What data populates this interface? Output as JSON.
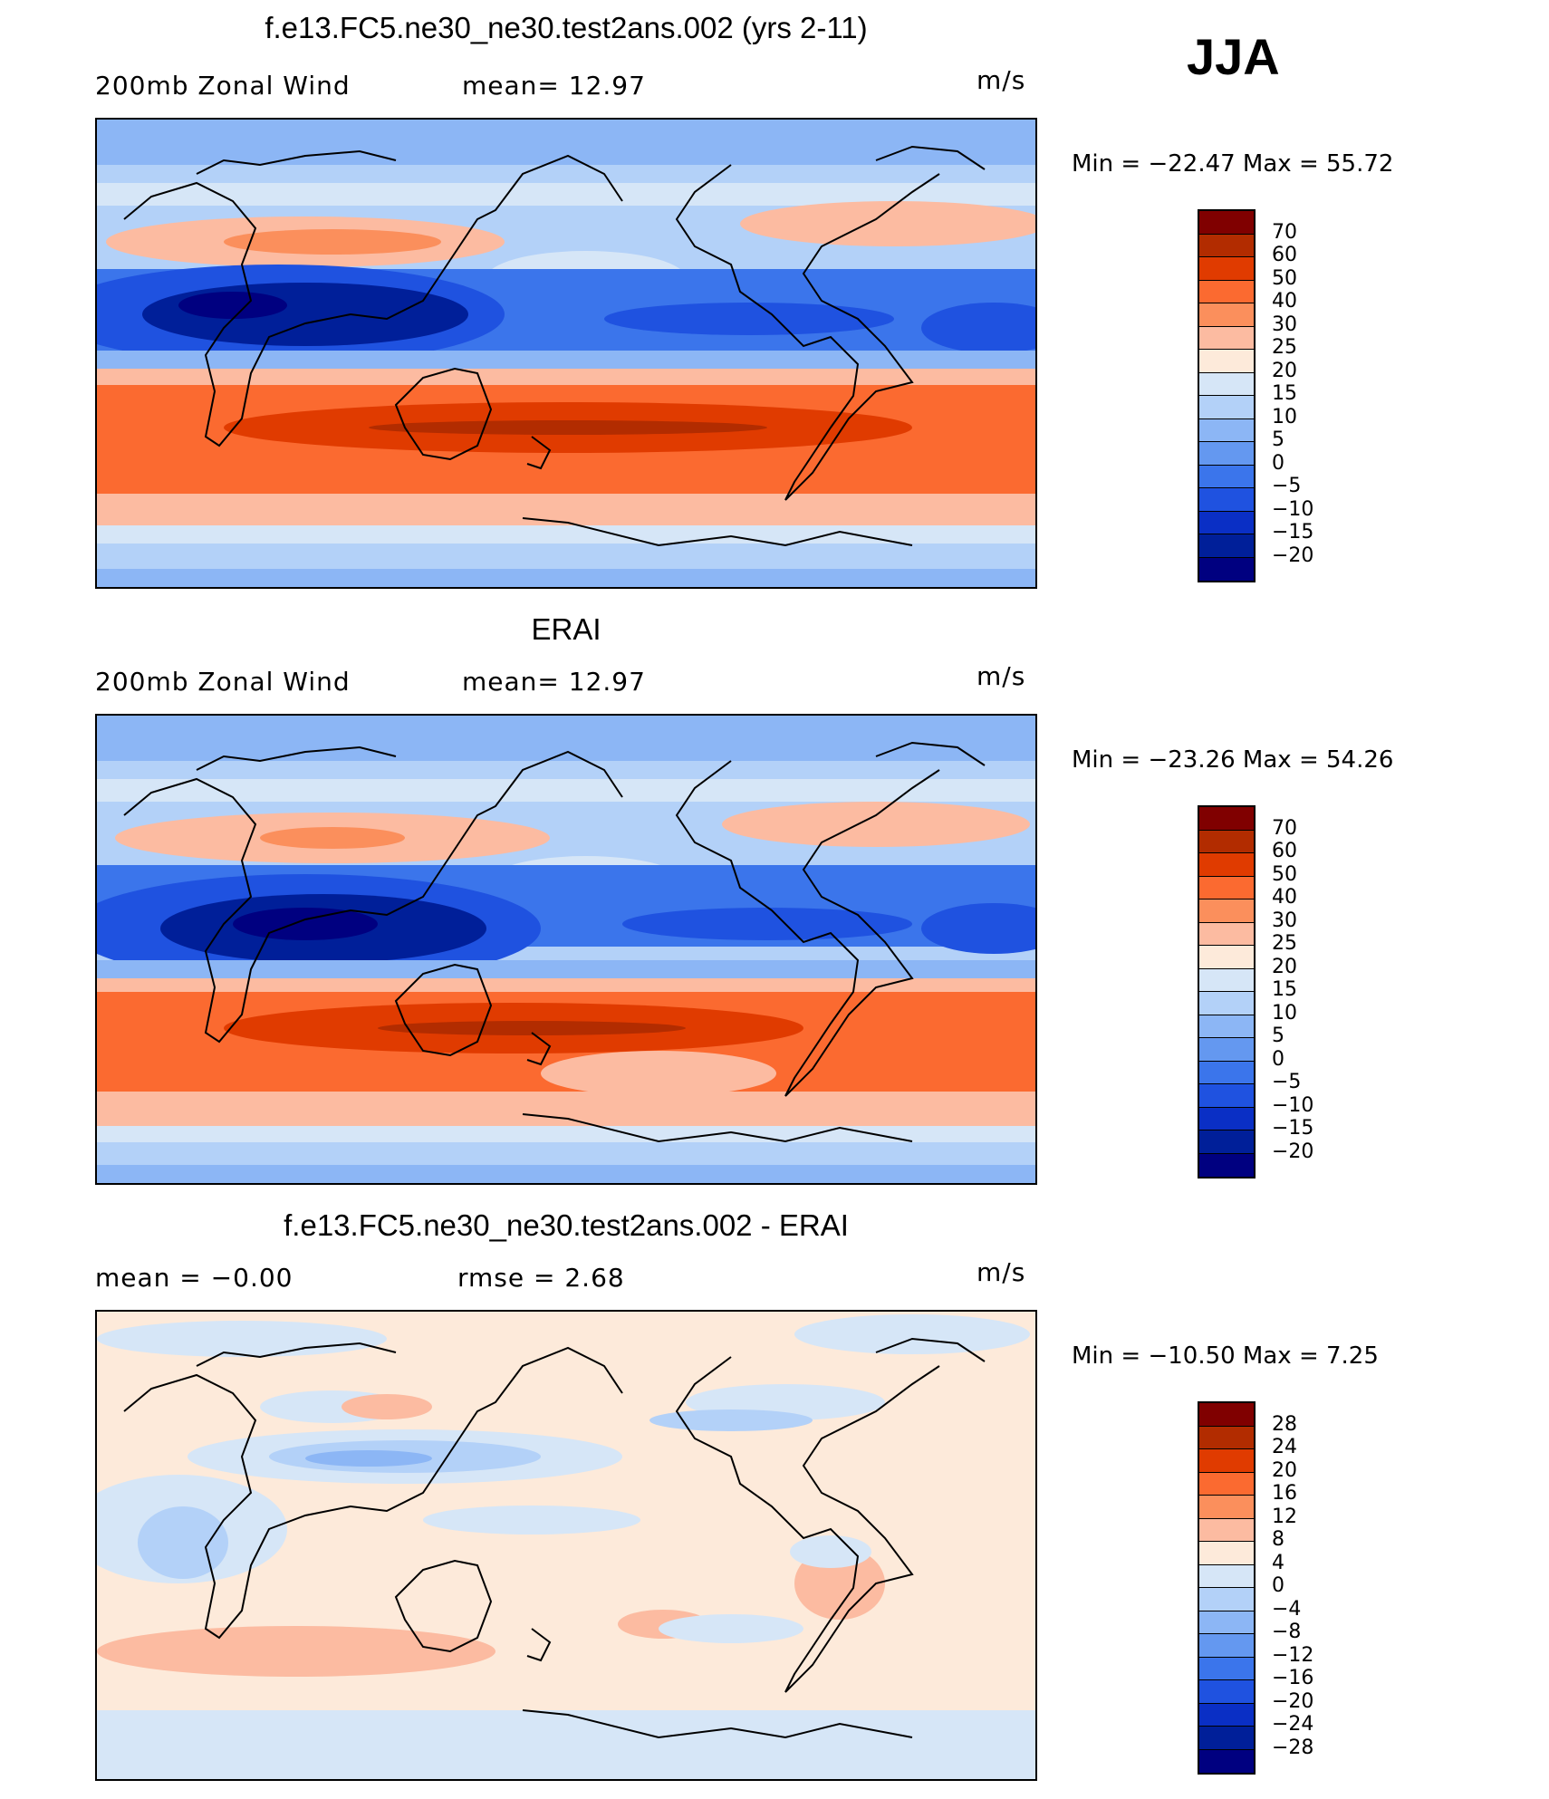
{
  "season": "JJA",
  "panels": [
    {
      "title": "f.e13.FC5.ne30_ne30.test2ans.002 (yrs 2-11)",
      "left_label": "200mb  Zonal  Wind",
      "center_label": "mean=   12.97",
      "units": "m/s",
      "minmax": "Min  =  −22.47  Max  =    55.72",
      "colorbar": {
        "colors": [
          "#800000",
          "#b22c00",
          "#e03b00",
          "#fb6a30",
          "#fb8f5c",
          "#fcbba1",
          "#fdeada",
          "#d6e6f7",
          "#b3d1f8",
          "#8cb6f5",
          "#6498f0",
          "#3b75eb",
          "#1f52e0",
          "#0a2fc5",
          "#001f99",
          "#000080"
        ],
        "labels": [
          "70",
          "60",
          "50",
          "40",
          "30",
          "25",
          "20",
          "15",
          "10",
          "5",
          "0",
          "−5",
          "−10",
          "−15",
          "−20"
        ]
      }
    },
    {
      "title": "ERAI",
      "left_label": "200mb  Zonal  Wind",
      "center_label": "mean=   12.97",
      "units": "m/s",
      "minmax": "Min  =  −23.26  Max  =    54.26",
      "colorbar": {
        "colors": [
          "#800000",
          "#b22c00",
          "#e03b00",
          "#fb6a30",
          "#fb8f5c",
          "#fcbba1",
          "#fdeada",
          "#d6e6f7",
          "#b3d1f8",
          "#8cb6f5",
          "#6498f0",
          "#3b75eb",
          "#1f52e0",
          "#0a2fc5",
          "#001f99",
          "#000080"
        ],
        "labels": [
          "70",
          "60",
          "50",
          "40",
          "30",
          "25",
          "20",
          "15",
          "10",
          "5",
          "0",
          "−5",
          "−10",
          "−15",
          "−20"
        ]
      }
    },
    {
      "title": "f.e13.FC5.ne30_ne30.test2ans.002 - ERAI",
      "left_label": "mean  =    −0.00",
      "center_label": "rmse  =     2.68",
      "units": "m/s",
      "minmax": "Min  =  −10.50  Max  =      7.25",
      "colorbar": {
        "colors": [
          "#800000",
          "#b22c00",
          "#e03b00",
          "#fb6a30",
          "#fb8f5c",
          "#fcbba1",
          "#fdeada",
          "#d6e6f7",
          "#b3d1f8",
          "#8cb6f5",
          "#6498f0",
          "#3b75eb",
          "#1f52e0",
          "#0a2fc5",
          "#001f99",
          "#000080"
        ],
        "labels": [
          "28",
          "24",
          "20",
          "16",
          "12",
          "8",
          "4",
          "0",
          "−4",
          "−8",
          "−12",
          "−16",
          "−20",
          "−24",
          "−28"
        ]
      }
    }
  ]
}
